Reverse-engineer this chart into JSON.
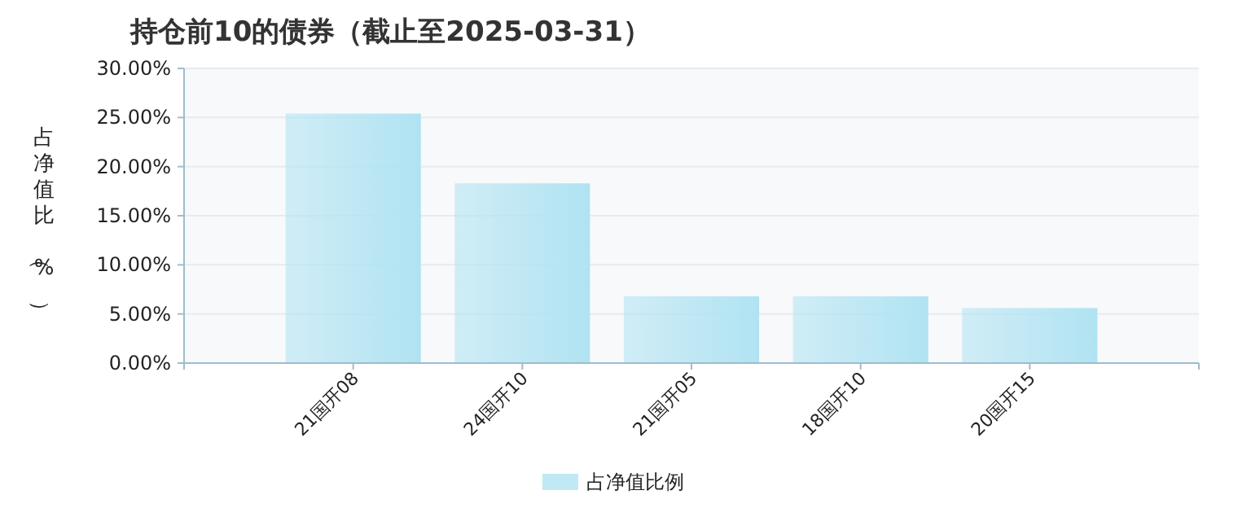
{
  "chart_data": {
    "type": "bar",
    "title": "持仓前10的债券（截止至2025-03-31）",
    "ylabel": "占净值比（%）",
    "categories": [
      "21国开08",
      "24国开10",
      "21国开05",
      "18国开10",
      "20国开15"
    ],
    "series": [
      {
        "name": "占净值比例",
        "color": "#b0e3f2",
        "values": [
          25.4,
          18.3,
          6.8,
          6.8,
          5.6
        ]
      }
    ],
    "ylim": [
      0,
      30
    ],
    "yticks": [
      {
        "value": 0,
        "label": "0.00%"
      },
      {
        "value": 5,
        "label": "5.00%"
      },
      {
        "value": 10,
        "label": "10.00%"
      },
      {
        "value": 15,
        "label": "15.00%"
      },
      {
        "value": 20,
        "label": "20.00%"
      },
      {
        "value": 25,
        "label": "25.00%"
      },
      {
        "value": 30,
        "label": "30.00%"
      }
    ],
    "grid": "y",
    "legend": "bottom"
  }
}
